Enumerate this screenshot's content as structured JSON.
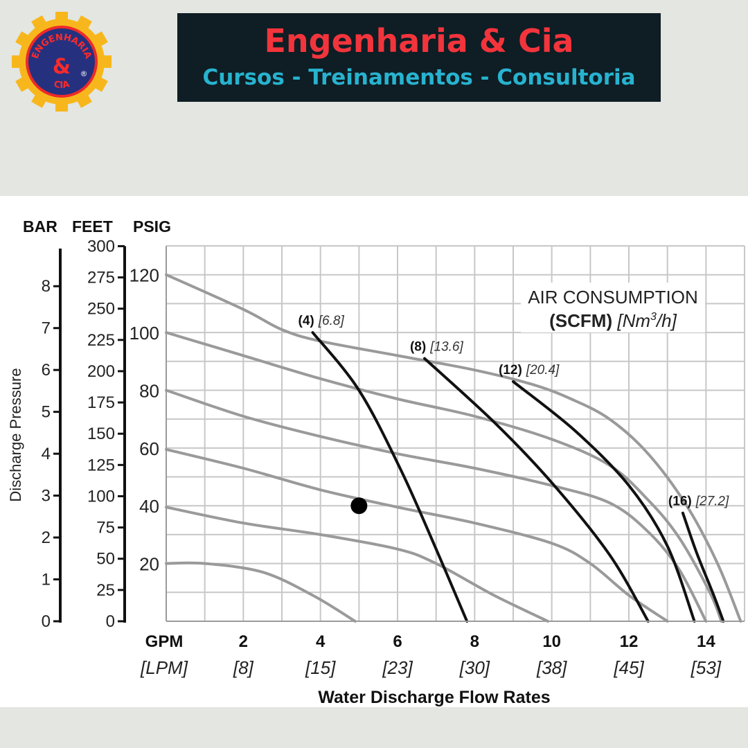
{
  "header": {
    "logo_text_top": "ENGENHARIA",
    "logo_text_mid": "&",
    "logo_text_bottom": "CIA",
    "logo_registered": "®",
    "title": "Engenharia & Cia",
    "subtitle": "Cursos - Treinamentos - Consultoria",
    "title_color": "#f2343c",
    "subtitle_color": "#27b3cf"
  },
  "chart_data": {
    "type": "line",
    "xlabel": "Water Discharge Flow Rates",
    "x_unit_label": "GPM",
    "x_alt_unit_label": "[LPM]",
    "x_ticks": [
      {
        "gpm": "2",
        "lpm": "[8]"
      },
      {
        "gpm": "4",
        "lpm": "[15]"
      },
      {
        "gpm": "6",
        "lpm": "[23]"
      },
      {
        "gpm": "8",
        "lpm": "[30]"
      },
      {
        "gpm": "10",
        "lpm": "[38]"
      },
      {
        "gpm": "12",
        "lpm": "[45]"
      },
      {
        "gpm": "14",
        "lpm": "[53]"
      }
    ],
    "xlim": [
      0,
      15
    ],
    "ylabel": "Discharge Pressure",
    "y_axes": {
      "bar": {
        "label": "BAR",
        "ticks": [
          "0",
          "1",
          "2",
          "3",
          "4",
          "5",
          "6",
          "7",
          "8"
        ]
      },
      "feet": {
        "label": "FEET",
        "ticks": [
          "0",
          "25",
          "50",
          "75",
          "100",
          "125",
          "150",
          "175",
          "200",
          "225",
          "250",
          "275",
          "300"
        ]
      },
      "psig": {
        "label": "PSIG",
        "ticks": [
          "20",
          "40",
          "60",
          "80",
          "100",
          "120"
        ]
      }
    },
    "ylim_psig": [
      0,
      130
    ],
    "grid": true,
    "legend_title_line1": "AIR CONSUMPTION",
    "legend_title_bold": "(SCFM)",
    "legend_title_italic": "[Nm",
    "legend_title_sup": "3",
    "legend_title_end": "/h]",
    "pressure_curves": [
      {
        "points": [
          [
            0,
            20
          ],
          [
            1,
            20
          ],
          [
            2.5,
            17
          ],
          [
            3.8,
            9
          ],
          [
            4.9,
            0
          ]
        ]
      },
      {
        "points": [
          [
            0,
            39.5
          ],
          [
            2,
            34
          ],
          [
            4,
            30
          ],
          [
            6,
            25
          ],
          [
            7,
            20
          ],
          [
            8.5,
            9
          ],
          [
            9.9,
            0
          ]
        ]
      },
      {
        "points": [
          [
            0,
            59.5
          ],
          [
            2,
            53
          ],
          [
            4,
            45.5
          ],
          [
            6,
            39.5
          ],
          [
            8,
            34
          ],
          [
            10,
            27
          ],
          [
            11,
            20
          ],
          [
            12,
            9
          ],
          [
            13,
            0
          ]
        ]
      },
      {
        "points": [
          [
            0,
            80
          ],
          [
            2,
            71
          ],
          [
            4,
            64
          ],
          [
            6,
            58
          ],
          [
            8,
            53
          ],
          [
            10,
            47
          ],
          [
            11.5,
            41
          ],
          [
            12.5,
            31
          ],
          [
            13.3,
            18
          ],
          [
            14,
            0
          ]
        ]
      },
      {
        "points": [
          [
            0,
            100
          ],
          [
            2,
            92
          ],
          [
            4,
            84
          ],
          [
            6,
            77
          ],
          [
            8,
            71
          ],
          [
            10,
            63
          ],
          [
            11.5,
            54
          ],
          [
            12.5,
            42
          ],
          [
            13.3,
            29
          ],
          [
            14.1,
            10
          ],
          [
            14.4,
            0
          ]
        ]
      },
      {
        "points": [
          [
            0,
            120
          ],
          [
            2,
            108
          ],
          [
            3,
            101
          ],
          [
            4,
            97
          ],
          [
            6,
            92
          ],
          [
            8,
            87
          ],
          [
            9.5,
            82
          ],
          [
            10.5,
            77
          ],
          [
            11.5,
            70
          ],
          [
            12.5,
            58
          ],
          [
            13.5,
            40
          ],
          [
            14.3,
            20
          ],
          [
            14.9,
            0
          ]
        ]
      }
    ],
    "air_curves": [
      {
        "scfm": "(4)",
        "nm3h": "[6.8]",
        "points": [
          [
            3.8,
            100
          ],
          [
            5,
            80
          ],
          [
            6.1,
            52
          ],
          [
            7,
            25
          ],
          [
            7.8,
            0
          ]
        ]
      },
      {
        "scfm": "(8)",
        "nm3h": "[13.6]",
        "points": [
          [
            6.7,
            91
          ],
          [
            8.5,
            69
          ],
          [
            10,
            48
          ],
          [
            11.5,
            23
          ],
          [
            12.5,
            0
          ]
        ]
      },
      {
        "scfm": "(12)",
        "nm3h": "[20.4]",
        "points": [
          [
            9,
            83
          ],
          [
            10.6,
            66
          ],
          [
            12,
            47
          ],
          [
            13,
            26
          ],
          [
            13.7,
            0
          ]
        ]
      },
      {
        "scfm": "(16)",
        "nm3h": "[27.2]",
        "points": [
          [
            13.4,
            37.5
          ],
          [
            13.75,
            24
          ],
          [
            14.2,
            9
          ],
          [
            14.45,
            0
          ]
        ]
      }
    ],
    "marker": {
      "x": 5,
      "y": 40
    }
  }
}
